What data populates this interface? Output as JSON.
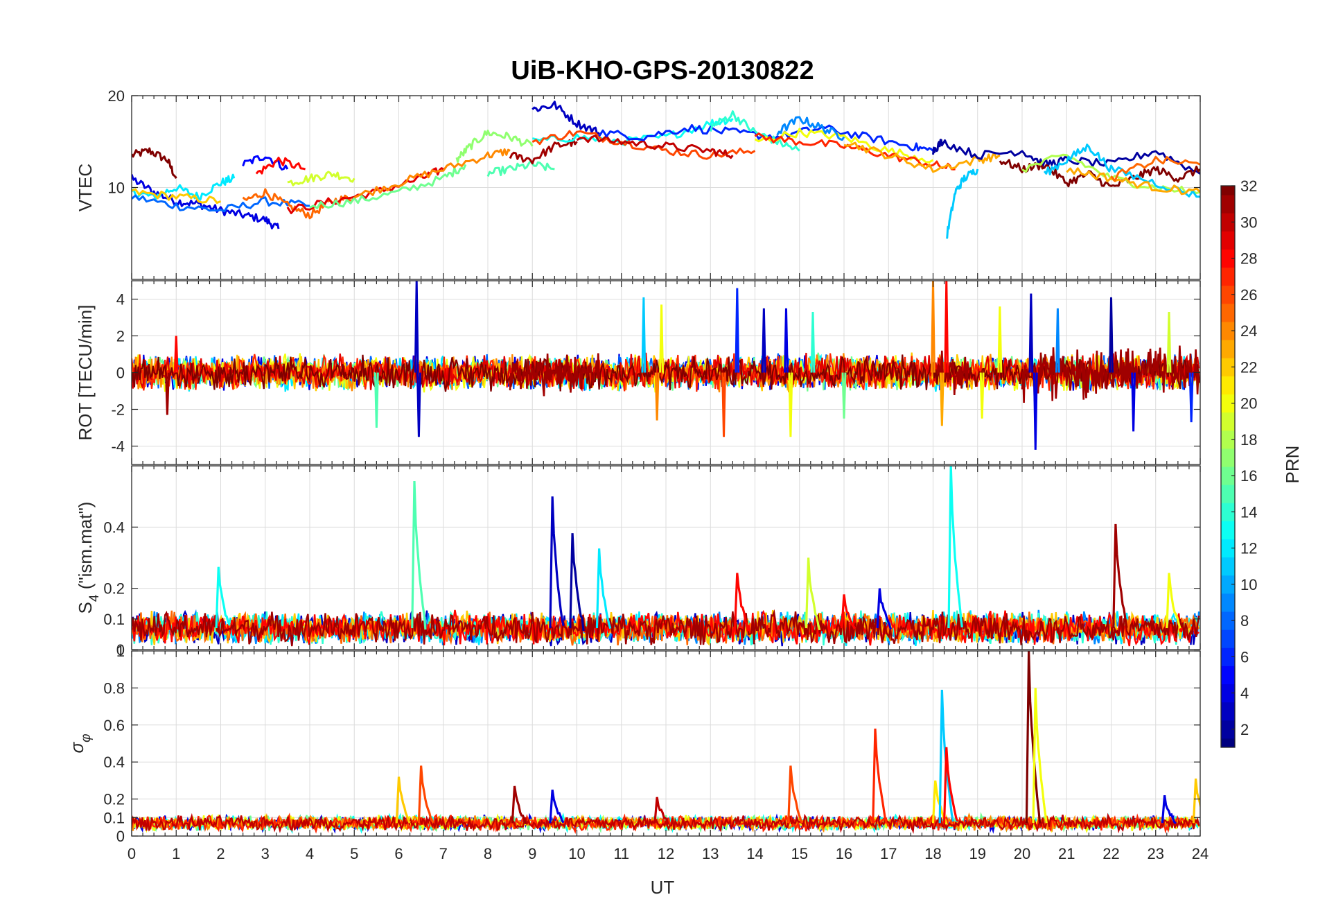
{
  "chart_data": {
    "type": "line",
    "title": "UiB-KHO-GPS-20130822",
    "xlabel": "UT",
    "xlim": [
      0,
      24
    ],
    "xticks": [
      "0",
      "1",
      "2",
      "3",
      "4",
      "5",
      "6",
      "7",
      "8",
      "9",
      "10",
      "11",
      "12",
      "13",
      "14",
      "15",
      "16",
      "17",
      "18",
      "19",
      "20",
      "21",
      "22",
      "23",
      "24"
    ],
    "grid": true,
    "colorbar": {
      "label": "PRN",
      "colormap": "jet",
      "range": [
        1,
        32
      ],
      "ticks": [
        "2",
        "4",
        "6",
        "8",
        "10",
        "12",
        "14",
        "16",
        "18",
        "20",
        "22",
        "24",
        "26",
        "28",
        "30",
        "32"
      ],
      "placement": "right"
    },
    "panels": [
      {
        "id": "vtec",
        "ylabel": "VTEC",
        "ylim": [
          0,
          20
        ],
        "ytick_labels": [
          "10",
          "20"
        ],
        "series_style": "smooth",
        "series": [
          {
            "prn": 32,
            "x": [
              0,
              0.4,
              0.8,
              1.0
            ],
            "y": [
              13.5,
              14.0,
              13.0,
              11.0
            ]
          },
          {
            "prn": 4,
            "x": [
              0,
              0.5,
              1,
              1.5,
              2,
              2.5,
              3,
              3.3
            ],
            "y": [
              11.0,
              9.5,
              8.5,
              8.2,
              7.5,
              7.0,
              6.5,
              5.5
            ]
          },
          {
            "prn": 12,
            "x": [
              0,
              0.5,
              1,
              1.5,
              2,
              2.3
            ],
            "y": [
              9.5,
              9.0,
              10.0,
              9.0,
              10.5,
              11.0
            ]
          },
          {
            "prn": 8,
            "x": [
              0,
              1,
              2,
              3,
              4
            ],
            "y": [
              9.0,
              8.0,
              7.5,
              8.5,
              8.0
            ]
          },
          {
            "prn": 22,
            "x": [
              0,
              1,
              2
            ],
            "y": [
              9.5,
              9.0,
              8.5
            ]
          },
          {
            "prn": 5,
            "x": [
              2.5,
              3,
              3.5
            ],
            "y": [
              12.5,
              13.5,
              12.0
            ]
          },
          {
            "prn": 28,
            "x": [
              2.8,
              3.3,
              3.9
            ],
            "y": [
              11.5,
              13.0,
              12.0
            ]
          },
          {
            "prn": 25,
            "x": [
              2.5,
              3,
              3.5,
              4,
              4.5,
              5
            ],
            "y": [
              8.5,
              9.5,
              8.0,
              7.0,
              8.5,
              9.0
            ]
          },
          {
            "prn": 19,
            "x": [
              3.5,
              4,
              4.5,
              5
            ],
            "y": [
              10.5,
              11.0,
              11.5,
              11.0
            ]
          },
          {
            "prn": 29,
            "x": [
              3.5,
              4.5,
              5.5,
              6.5,
              7
            ],
            "y": [
              7.5,
              8.5,
              9.5,
              11.0,
              12.0
            ]
          },
          {
            "prn": 16,
            "x": [
              4,
              5,
              6,
              7,
              7.5
            ],
            "y": [
              8.0,
              8.5,
              9.5,
              11.0,
              12.5
            ]
          },
          {
            "prn": 24,
            "x": [
              5,
              6,
              7,
              8,
              8.5
            ],
            "y": [
              9.0,
              10.5,
              12.0,
              13.5,
              14.0
            ]
          },
          {
            "prn": 17,
            "x": [
              7.3,
              7.6,
              8,
              8.5,
              9
            ],
            "y": [
              13.0,
              14.5,
              16.0,
              15.5,
              14.5
            ]
          },
          {
            "prn": 15,
            "x": [
              8,
              8.5,
              9,
              9.5
            ],
            "y": [
              11.5,
              12.0,
              12.5,
              12.0
            ]
          },
          {
            "prn": 31,
            "x": [
              8.5,
              9,
              9.5,
              10
            ],
            "y": [
              13.5,
              13.0,
              14.5,
              15.0
            ]
          },
          {
            "prn": 13,
            "x": [
              9,
              10,
              11,
              12,
              13,
              13.5
            ],
            "y": [
              15.0,
              15.5,
              15.0,
              15.5,
              17.0,
              17.5
            ]
          },
          {
            "prn": 3,
            "x": [
              9,
              9.5,
              10,
              10.5
            ],
            "y": [
              18.5,
              19.0,
              17.0,
              16.0
            ]
          },
          {
            "prn": 26,
            "x": [
              9,
              10,
              11,
              12,
              13,
              14
            ],
            "y": [
              15.0,
              16.0,
              15.0,
              14.0,
              13.5,
              14.0
            ]
          },
          {
            "prn": 30,
            "x": [
              10,
              11,
              12,
              13,
              13.5
            ],
            "y": [
              15.5,
              15.0,
              14.5,
              14.0,
              13.5
            ]
          },
          {
            "prn": 6,
            "x": [
              10.5,
              11.5,
              12.5,
              13.5,
              14.5,
              15.5,
              16.5,
              17.5,
              18
            ],
            "y": [
              16.0,
              15.5,
              16.5,
              16.0,
              15.5,
              16.5,
              15.5,
              14.5,
              14.0
            ]
          },
          {
            "prn": 14,
            "x": [
              13,
              13.5,
              14,
              14.5,
              15
            ],
            "y": [
              16.5,
              18.0,
              16.0,
              15.0,
              14.0
            ]
          },
          {
            "prn": 20,
            "x": [
              14,
              15,
              16,
              17,
              18
            ],
            "y": [
              15.0,
              16.0,
              15.5,
              14.0,
              13.0
            ]
          },
          {
            "prn": 27,
            "x": [
              14,
              15,
              16,
              17,
              18,
              18.5
            ],
            "y": [
              15.5,
              15.0,
              14.5,
              13.5,
              12.5,
              12.0
            ]
          },
          {
            "prn": 9,
            "x": [
              14.5,
              15,
              15.5,
              16
            ],
            "y": [
              16.0,
              17.5,
              16.5,
              15.5
            ]
          },
          {
            "prn": 23,
            "x": [
              16,
              17,
              18,
              19,
              19.5
            ],
            "y": [
              15.0,
              13.5,
              12.0,
              13.0,
              13.5
            ]
          },
          {
            "prn": 11,
            "x": [
              18.3,
              18.5,
              18.7,
              19
            ],
            "y": [
              4.5,
              9.5,
              11.0,
              12.0
            ]
          },
          {
            "prn": 2,
            "x": [
              18,
              18.2,
              19,
              20,
              20.5,
              21,
              22,
              23,
              24
            ],
            "y": [
              14.0,
              15.0,
              13.5,
              14.0,
              12.5,
              13.0,
              12.5,
              14.0,
              11.5
            ]
          },
          {
            "prn": 32,
            "x": [
              19.5,
              20,
              20.5,
              21,
              21.5,
              22,
              22.5,
              23,
              23.5,
              24
            ],
            "y": [
              13.0,
              12.0,
              12.5,
              10.5,
              11.5,
              10.0,
              11.0,
              12.0,
              11.0,
              12.0
            ]
          },
          {
            "prn": 18,
            "x": [
              20,
              21,
              22,
              23,
              24
            ],
            "y": [
              12.0,
              13.5,
              11.0,
              10.0,
              9.5
            ]
          },
          {
            "prn": 11,
            "x": [
              20.5,
              21,
              21.5,
              22,
              23,
              24
            ],
            "y": [
              11.5,
              13.0,
              14.5,
              12.0,
              10.5,
              9.0
            ]
          },
          {
            "prn": 23,
            "x": [
              21,
              22,
              23,
              24
            ],
            "y": [
              12.0,
              11.0,
              10.0,
              9.5
            ]
          },
          {
            "prn": 25,
            "x": [
              22,
              23,
              24
            ],
            "y": [
              11.0,
              13.0,
              12.5
            ]
          }
        ]
      },
      {
        "id": "rot",
        "ylabel": "ROT [TECU/min]",
        "ylim": [
          -5,
          5
        ],
        "ytick_labels": [
          "-4",
          "-2",
          "0",
          "2",
          "4"
        ],
        "series_style": "noise",
        "noise_background": {
          "band": 0.5,
          "prns": [
            4,
            8,
            12,
            16,
            20,
            22,
            24,
            27,
            29,
            32
          ]
        },
        "spikes": [
          {
            "x": 0.8,
            "y": -2.3,
            "prn": 31
          },
          {
            "x": 1.0,
            "y": 2.0,
            "prn": 28
          },
          {
            "x": 6.4,
            "y": 5.0,
            "prn": 3
          },
          {
            "x": 6.45,
            "y": -3.5,
            "prn": 3
          },
          {
            "x": 5.5,
            "y": -3.0,
            "prn": 15
          },
          {
            "x": 11.5,
            "y": 4.1,
            "prn": 11
          },
          {
            "x": 11.9,
            "y": 3.7,
            "prn": 20
          },
          {
            "x": 11.8,
            "y": -2.6,
            "prn": 24
          },
          {
            "x": 13.3,
            "y": -3.5,
            "prn": 26
          },
          {
            "x": 13.6,
            "y": 4.6,
            "prn": 6
          },
          {
            "x": 14.2,
            "y": 3.5,
            "prn": 3
          },
          {
            "x": 14.7,
            "y": 3.5,
            "prn": 4
          },
          {
            "x": 14.8,
            "y": -3.5,
            "prn": 20
          },
          {
            "x": 15.3,
            "y": 3.3,
            "prn": 14
          },
          {
            "x": 16.0,
            "y": -2.5,
            "prn": 16
          },
          {
            "x": 18.0,
            "y": 5.0,
            "prn": 24
          },
          {
            "x": 18.3,
            "y": 5.0,
            "prn": 28
          },
          {
            "x": 18.2,
            "y": -2.9,
            "prn": 23
          },
          {
            "x": 19.1,
            "y": -2.5,
            "prn": 20
          },
          {
            "x": 19.5,
            "y": 3.6,
            "prn": 20
          },
          {
            "x": 20.2,
            "y": 4.3,
            "prn": 3
          },
          {
            "x": 20.3,
            "y": -4.2,
            "prn": 4
          },
          {
            "x": 20.8,
            "y": 3.5,
            "prn": 9
          },
          {
            "x": 22.5,
            "y": -3.2,
            "prn": 4
          },
          {
            "x": 22.0,
            "y": 4.1,
            "prn": 2
          },
          {
            "x": 23.3,
            "y": 3.3,
            "prn": 19
          },
          {
            "x": 23.8,
            "y": -2.7,
            "prn": 6
          }
        ],
        "dense_bursts": [
          {
            "x": [
              8.5,
              10.5
            ],
            "amplitude": 1.5,
            "prn": 31
          },
          {
            "x": [
              18.1,
              18.8
            ],
            "amplitude": 2.0,
            "prn": 31
          },
          {
            "x": [
              20.0,
              24.0
            ],
            "amplitude": 1.8,
            "prn": 31
          }
        ]
      },
      {
        "id": "s4",
        "ylabel": "S4 (\"ism.mat\")",
        "ylabel_main": "S",
        "ylabel_sub": "4",
        "ylabel_rest": " (\"ism.mat\")",
        "ylim": [
          0,
          0.6
        ],
        "ytick_labels": [
          "0",
          "0.1",
          "0.2",
          "0.4"
        ],
        "ytick_values": [
          0,
          0.1,
          0.2,
          0.4
        ],
        "series_style": "noise_floor",
        "noise_background": {
          "base": 0.07,
          "band": 0.04,
          "prns": [
            3,
            9,
            12,
            14,
            22,
            25,
            28,
            31
          ]
        },
        "spikes": [
          {
            "x": 1.95,
            "y": 0.27,
            "prn": 13
          },
          {
            "x": 6.35,
            "y": 0.55,
            "prn": 15
          },
          {
            "x": 9.45,
            "y": 0.5,
            "prn": 3
          },
          {
            "x": 9.9,
            "y": 0.38,
            "prn": 2
          },
          {
            "x": 10.5,
            "y": 0.33,
            "prn": 12
          },
          {
            "x": 13.6,
            "y": 0.25,
            "prn": 28
          },
          {
            "x": 15.2,
            "y": 0.3,
            "prn": 19
          },
          {
            "x": 18.4,
            "y": 0.6,
            "prn": 13
          },
          {
            "x": 22.1,
            "y": 0.41,
            "prn": 31
          },
          {
            "x": 23.3,
            "y": 0.25,
            "prn": 20
          },
          {
            "x": 16.0,
            "y": 0.18,
            "prn": 28
          },
          {
            "x": 16.8,
            "y": 0.2,
            "prn": 4
          }
        ]
      },
      {
        "id": "sigma_phi",
        "ylabel": "σφ",
        "ylabel_main": "σ",
        "ylabel_sub": "φ",
        "ylim": [
          0,
          1
        ],
        "ytick_labels": [
          "0",
          "0.1",
          "0.2",
          "0.4",
          "0.6",
          "0.8",
          "1"
        ],
        "ytick_values": [
          0,
          0.1,
          0.2,
          0.4,
          0.6,
          0.8,
          1
        ],
        "series_style": "noise_floor",
        "noise_background": {
          "base": 0.07,
          "band": 0.03,
          "prns": [
            4,
            13,
            16,
            20,
            24,
            27,
            30
          ]
        },
        "spikes": [
          {
            "x": 6.0,
            "y": 0.32,
            "prn": 22
          },
          {
            "x": 6.5,
            "y": 0.38,
            "prn": 26
          },
          {
            "x": 8.6,
            "y": 0.27,
            "prn": 31
          },
          {
            "x": 9.45,
            "y": 0.25,
            "prn": 4
          },
          {
            "x": 11.8,
            "y": 0.21,
            "prn": 30
          },
          {
            "x": 14.8,
            "y": 0.38,
            "prn": 26
          },
          {
            "x": 16.7,
            "y": 0.58,
            "prn": 27
          },
          {
            "x": 18.05,
            "y": 0.3,
            "prn": 21
          },
          {
            "x": 18.2,
            "y": 0.79,
            "prn": 11
          },
          {
            "x": 18.3,
            "y": 0.48,
            "prn": 28
          },
          {
            "x": 20.15,
            "y": 1.0,
            "prn": 32
          },
          {
            "x": 20.3,
            "y": 0.8,
            "prn": 20
          },
          {
            "x": 23.9,
            "y": 0.31,
            "prn": 22
          },
          {
            "x": 23.2,
            "y": 0.22,
            "prn": 4
          }
        ]
      }
    ]
  }
}
